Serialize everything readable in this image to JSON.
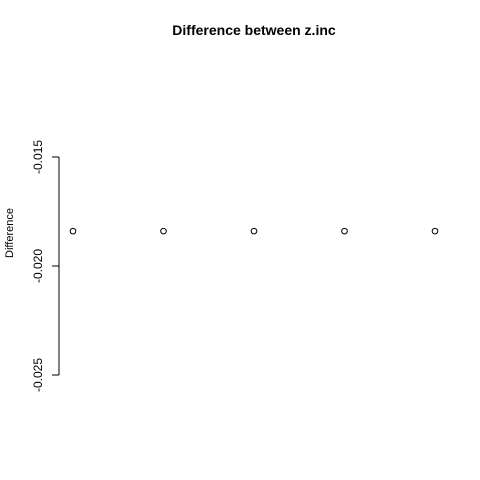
{
  "chart_data": {
    "type": "scatter",
    "title": "Difference between z.inc",
    "xlabel": "",
    "ylabel": "Difference",
    "x": [
      1,
      2,
      3,
      4,
      5
    ],
    "y": [
      -0.0184,
      -0.0184,
      -0.0184,
      -0.0184,
      -0.0184
    ],
    "ylim": [
      -0.025,
      -0.015
    ],
    "y_ticks": [
      -0.025,
      -0.02,
      -0.015
    ],
    "y_tick_labels": [
      "-0.025",
      "-0.020",
      "-0.015"
    ],
    "grid": false,
    "legend": "none",
    "marker": "open-circle",
    "colors": {
      "point": "#000000",
      "axis": "#000000",
      "background": "#ffffff"
    }
  }
}
